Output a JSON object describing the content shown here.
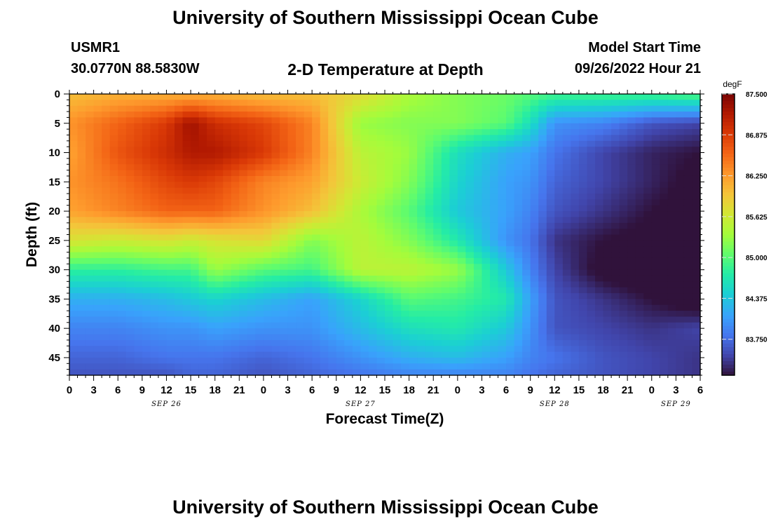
{
  "titles": {
    "top": "University of Southern Mississippi Ocean Cube",
    "bottom": "University of Southern Mississippi Ocean Cube"
  },
  "station": {
    "id": "USMR1",
    "coords": "30.0770N  88.5830W"
  },
  "subtitle": "2-D Temperature at Depth",
  "model_start": {
    "label": "Model Start Time",
    "value": "09/26/2022 Hour 21"
  },
  "chart_data": {
    "type": "heatmap",
    "title": "2-D Temperature at Depth",
    "xlabel": "Forecast Time(Z)",
    "ylabel": "Depth (ft)",
    "colorbar_unit": "degF",
    "colorbar_ticks": [
      "87.500",
      "86.875",
      "86.250",
      "85.625",
      "85.000",
      "84.375",
      "83.750"
    ],
    "color_range": [
      83.2,
      87.5
    ],
    "x_tick_labels": [
      "0",
      "3",
      "6",
      "9",
      "12",
      "15",
      "18",
      "21",
      "0",
      "3",
      "6",
      "9",
      "12",
      "15",
      "18",
      "21",
      "0",
      "3",
      "6",
      "9",
      "12",
      "15",
      "18",
      "21",
      "0",
      "3",
      "6"
    ],
    "x_date_labels": [
      {
        "label": "SEP 26",
        "tick_index": 4
      },
      {
        "label": "SEP 27",
        "tick_index": 12
      },
      {
        "label": "SEP 28",
        "tick_index": 20
      },
      {
        "label": "SEP 29",
        "tick_index": 25
      }
    ],
    "x_range_hours": [
      0,
      78
    ],
    "y_ticks": [
      0,
      5,
      10,
      15,
      20,
      25,
      30,
      35,
      40,
      45
    ],
    "ylim": [
      0,
      48
    ],
    "y_reversed": true,
    "grid": false,
    "hours": [
      0,
      6,
      12,
      15,
      18,
      24,
      30,
      36,
      42,
      48,
      54,
      57,
      60,
      66,
      72,
      78
    ],
    "depths": [
      0,
      5,
      10,
      15,
      20,
      25,
      30,
      35,
      40,
      45,
      48
    ],
    "temperature": [
      [
        86.0,
        86.1,
        86.1,
        86.1,
        86.1,
        86.0,
        86.0,
        85.8,
        85.4,
        85.2,
        85.1,
        85.0,
        84.9,
        84.9,
        84.9,
        85.0
      ],
      [
        86.3,
        86.6,
        86.9,
        87.3,
        87.0,
        86.8,
        86.4,
        85.3,
        85.2,
        85.2,
        85.0,
        84.6,
        84.0,
        83.9,
        83.6,
        83.5
      ],
      [
        86.2,
        86.7,
        87.0,
        87.2,
        87.2,
        86.9,
        86.4,
        85.5,
        85.3,
        84.6,
        84.2,
        84.1,
        83.8,
        83.5,
        83.3,
        83.2
      ],
      [
        86.3,
        86.5,
        86.8,
        86.9,
        86.8,
        86.4,
        86.2,
        85.6,
        85.2,
        84.5,
        84.1,
        84.0,
        83.7,
        83.5,
        83.3,
        83.1
      ],
      [
        86.2,
        86.4,
        86.6,
        86.6,
        86.6,
        86.3,
        86.0,
        85.4,
        85.0,
        84.4,
        84.1,
        83.9,
        83.6,
        83.4,
        83.2,
        83.1
      ],
      [
        85.7,
        85.6,
        85.7,
        85.6,
        85.7,
        85.8,
        85.2,
        85.5,
        85.2,
        84.7,
        84.0,
        83.8,
        83.4,
        83.2,
        83.1,
        83.1
      ],
      [
        84.8,
        84.8,
        84.9,
        84.9,
        85.3,
        85.0,
        84.9,
        85.5,
        85.5,
        85.3,
        84.4,
        83.9,
        83.5,
        83.1,
        83.0,
        83.0
      ],
      [
        84.2,
        84.2,
        84.3,
        84.4,
        84.5,
        84.3,
        84.1,
        84.5,
        85.0,
        84.9,
        84.7,
        84.1,
        83.6,
        83.4,
        83.2,
        83.0
      ],
      [
        83.9,
        83.9,
        84.0,
        84.0,
        84.1,
        84.0,
        84.0,
        84.3,
        84.6,
        84.7,
        84.4,
        84.0,
        83.6,
        83.5,
        83.4,
        83.5
      ],
      [
        83.7,
        83.7,
        83.8,
        83.8,
        83.8,
        83.7,
        83.8,
        84.0,
        84.2,
        84.3,
        84.1,
        83.9,
        83.8,
        83.6,
        83.5,
        83.4
      ],
      [
        83.6,
        83.6,
        83.6,
        83.7,
        83.7,
        83.6,
        83.7,
        83.8,
        83.9,
        83.9,
        83.9,
        83.8,
        83.7,
        83.6,
        83.5,
        83.4
      ]
    ]
  }
}
